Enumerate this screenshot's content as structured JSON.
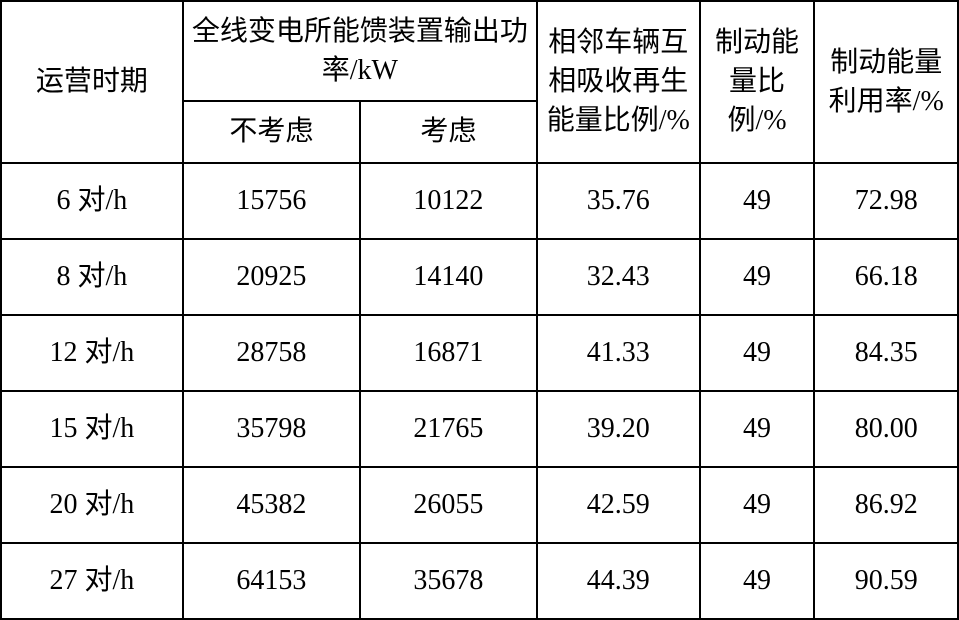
{
  "table": {
    "type": "table",
    "background_color": "#ffffff",
    "border_color": "#000000",
    "border_width": 2,
    "text_color": "#000000",
    "font_family": "SimSun",
    "header_fontsize": 28,
    "cell_fontsize": 28,
    "col_widths_pct": [
      19,
      15,
      15,
      17,
      12,
      15
    ],
    "header": {
      "period": "运营时期",
      "power_group": "全线变电所能馈装置输出功率/kW",
      "power_not_considered": "不考虑",
      "power_considered": "考虑",
      "adjacent": "相邻车辆互相吸收再生能量比例/%",
      "braking_ratio": "制动能量比例/%",
      "braking_efficiency": "制动能量利用率/%"
    },
    "rows": [
      {
        "period": "6 对/h",
        "power_not": "15756",
        "power_yes": "10122",
        "adjacent": "35.76",
        "ratio": "49",
        "efficiency": "72.98"
      },
      {
        "period": "8 对/h",
        "power_not": "20925",
        "power_yes": "14140",
        "adjacent": "32.43",
        "ratio": "49",
        "efficiency": "66.18"
      },
      {
        "period": "12 对/h",
        "power_not": "28758",
        "power_yes": "16871",
        "adjacent": "41.33",
        "ratio": "49",
        "efficiency": "84.35"
      },
      {
        "period": "15 对/h",
        "power_not": "35798",
        "power_yes": "21765",
        "adjacent": "39.20",
        "ratio": "49",
        "efficiency": "80.00"
      },
      {
        "period": "20 对/h",
        "power_not": "45382",
        "power_yes": "26055",
        "adjacent": "42.59",
        "ratio": "49",
        "efficiency": "86.92"
      },
      {
        "period": "27 对/h",
        "power_not": "64153",
        "power_yes": "35678",
        "adjacent": "44.39",
        "ratio": "49",
        "efficiency": "90.59"
      }
    ]
  }
}
